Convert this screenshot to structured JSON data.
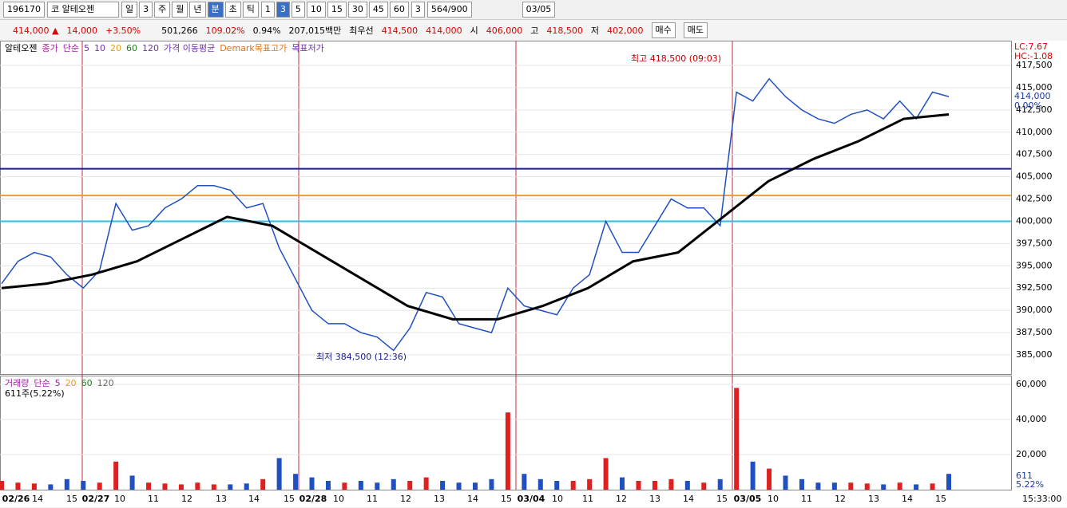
{
  "toolbar": {
    "code": "196170",
    "name": "코 알테오젠",
    "periods": [
      "일",
      "3",
      "주",
      "월",
      "년",
      "분",
      "초",
      "틱"
    ],
    "intervals": [
      "1",
      "3",
      "5",
      "10",
      "15",
      "30",
      "45",
      "60"
    ],
    "count": "3",
    "range": "564/900",
    "date": "03/05"
  },
  "quote": {
    "price": "414,000 ▲",
    "change": "14,000",
    "rate": "+3.50%",
    "volume": "501,266",
    "vol_ratio": "109.02%",
    "turnover": "0.94%",
    "amount": "207,015백만",
    "best_label": "최우선",
    "ask": "414,500",
    "bid": "414,000",
    "open_label": "시",
    "open": "406,000",
    "high_label": "고",
    "high": "418,500",
    "low_label": "저",
    "low": "402,000",
    "buy": "매수",
    "sell": "매도"
  },
  "price_chart": {
    "legend": [
      "알테오젠",
      "종가",
      "단순",
      "5",
      "10",
      "20",
      "60",
      "120",
      "가격 이동평균",
      "Demark목표고가",
      "목표저가"
    ],
    "ylim": [
      382850,
      420100
    ],
    "yticks": [
      {
        "value": 385000,
        "label": "385,000"
      },
      {
        "value": 387500,
        "label": "387,500"
      },
      {
        "value": 390000,
        "label": "390,000"
      },
      {
        "value": 392500,
        "label": "392,500"
      },
      {
        "value": 395000,
        "label": "395,000"
      },
      {
        "value": 397500,
        "label": "397,500"
      },
      {
        "value": 400000,
        "label": "400,000"
      },
      {
        "value": 402500,
        "label": "402,500"
      },
      {
        "value": 405000,
        "label": "405,000"
      },
      {
        "value": 407500,
        "label": "407,500"
      },
      {
        "value": 410000,
        "label": "410,000"
      },
      {
        "value": 412500,
        "label": "412,500"
      },
      {
        "value": 415000,
        "label": "415,000"
      },
      {
        "value": 417500,
        "label": "417,500"
      }
    ],
    "closes": [
      393000,
      395500,
      396500,
      396000,
      394000,
      392500,
      394500,
      402000,
      399000,
      399500,
      401500,
      402500,
      404000,
      404000,
      403500,
      401500,
      402000,
      397000,
      393500,
      390000,
      388500,
      388500,
      387500,
      387000,
      385500,
      388000,
      392000,
      391500,
      388500,
      388000,
      387500,
      392500,
      390500,
      390000,
      389500,
      392500,
      394000,
      400000,
      396500,
      396500,
      399500,
      402500,
      401500,
      401500,
      399500,
      414500,
      413500,
      416000,
      414000,
      412500,
      411500,
      411000,
      412000,
      412500,
      411500,
      413500,
      411500,
      414500,
      414000
    ],
    "ma120": [
      392500,
      393000,
      394000,
      395500,
      398000,
      400500,
      399500,
      396500,
      393500,
      390500,
      389000,
      389000,
      390500,
      392500,
      395500,
      396500,
      400500,
      404500,
      407000,
      409000,
      411500,
      412000
    ],
    "hlines": [
      {
        "value": 405900,
        "color": "#1a1aa0"
      },
      {
        "value": 402900,
        "color": "#e8a030"
      },
      {
        "value": 400000,
        "color": "#2cc0e0"
      }
    ],
    "high_note": "최고 418,500 (09:03)",
    "low_note": "최저 384,500 (12:36)",
    "right_labels": [
      "LC:7.67",
      "HC:-1.08",
      "414,000",
      "0.00%"
    ]
  },
  "volume_chart": {
    "legend": [
      "거래량",
      "단순",
      "5",
      "20",
      "60",
      "120"
    ],
    "summary": "611주(5.22%)",
    "ylim": [
      0,
      65000
    ],
    "yticks": [
      {
        "value": 20000,
        "label": "20,000"
      },
      {
        "value": 40000,
        "label": "40,000"
      },
      {
        "value": 60000,
        "label": "60,000"
      }
    ],
    "values": [
      5000,
      4000,
      3500,
      3000,
      6000,
      5000,
      4000,
      16000,
      8000,
      4000,
      3500,
      3000,
      4000,
      3000,
      3000,
      3500,
      6000,
      18000,
      9000,
      7000,
      5000,
      4000,
      5000,
      4000,
      6000,
      5000,
      7000,
      5000,
      4000,
      4000,
      6000,
      44000,
      9000,
      6000,
      5000,
      5000,
      6000,
      18000,
      7000,
      5000,
      5000,
      6000,
      5000,
      4000,
      6000,
      58000,
      16000,
      12000,
      8000,
      6000,
      4000,
      4000,
      4000,
      3500,
      3000,
      4000,
      3000,
      3500,
      9000
    ],
    "right_labels": [
      "611",
      "5.22%"
    ]
  },
  "time_axis": {
    "labels": [
      "02/26",
      "14",
      "15",
      "02/27",
      "10",
      "11",
      "12",
      "13",
      "14",
      "15",
      "02/28",
      "10",
      "11",
      "12",
      "13",
      "14",
      "15",
      "03/04",
      "10",
      "11",
      "12",
      "13",
      "14",
      "15",
      "03/05",
      "10",
      "11",
      "12",
      "13",
      "14",
      "15"
    ],
    "clock": "15:33:00"
  }
}
